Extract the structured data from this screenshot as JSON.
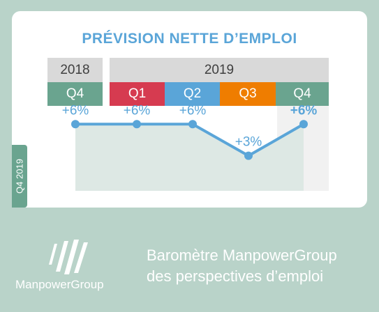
{
  "chart_data": {
    "type": "line",
    "title": "PRÉVISION NETTE D’EMPLOI",
    "year_groups": [
      {
        "label": "2018",
        "span": 1
      },
      {
        "label": "2019",
        "span": 4
      }
    ],
    "categories": [
      "Q4",
      "Q1",
      "Q2",
      "Q3",
      "Q4"
    ],
    "category_colors": [
      "#6aa48f",
      "#d63b50",
      "#5aa5d8",
      "#ef7d00",
      "#6aa48f"
    ],
    "values": [
      6,
      6,
      6,
      3,
      6
    ],
    "data_labels": [
      "+6%",
      "+6%",
      "+6%",
      "+3%",
      "+6%"
    ],
    "highlight_index": 4,
    "line_color": "#5aa5d8",
    "side_label": "Q4 2019",
    "ylim": [
      0,
      8
    ],
    "grid": false
  },
  "brand": {
    "name": "ManpowerGroup",
    "tagline_line1": "Baromètre ManpowerGroup",
    "tagline_line2": "des perspectives d’emploi",
    "icon": "manpower-logo-icon"
  }
}
